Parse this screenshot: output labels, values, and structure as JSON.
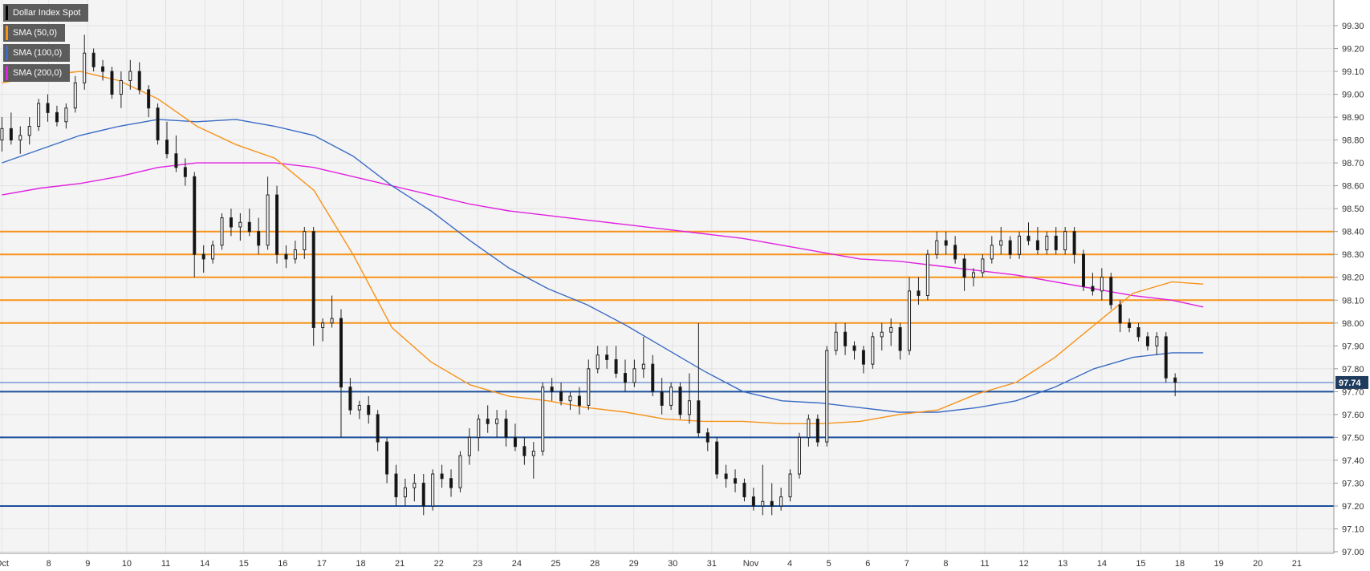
{
  "chart_data": {
    "type": "candlestick",
    "instrument": "Dollar Index Spot",
    "legend": [
      {
        "label": "Dollar Index Spot",
        "color": "#000000"
      },
      {
        "label": "SMA (50,0)",
        "color": "#f7931a"
      },
      {
        "label": "SMA (100,0)",
        "color": "#3a6bc4"
      },
      {
        "label": "SMA (200,0)",
        "color": "#e020e0"
      }
    ],
    "ylim": [
      97.0,
      99.4
    ],
    "y_ticks": [
      "99.30",
      "99.20",
      "99.10",
      "99.00",
      "98.90",
      "98.80",
      "98.70",
      "98.60",
      "98.50",
      "98.40",
      "98.30",
      "98.20",
      "98.10",
      "98.00",
      "97.90",
      "97.80",
      "97.70",
      "97.60",
      "97.50",
      "97.40",
      "97.30",
      "97.20",
      "97.10",
      "97.00"
    ],
    "x_ticks": [
      {
        "label": "Oct",
        "i": 0
      },
      {
        "label": "8",
        "i": 12
      },
      {
        "label": "9",
        "i": 22
      },
      {
        "label": "10",
        "i": 32
      },
      {
        "label": "11",
        "i": 42
      },
      {
        "label": "14",
        "i": 52
      },
      {
        "label": "15",
        "i": 62
      },
      {
        "label": "16",
        "i": 72
      },
      {
        "label": "17",
        "i": 82
      },
      {
        "label": "18",
        "i": 92
      },
      {
        "label": "21",
        "i": 102
      },
      {
        "label": "22",
        "i": 112
      },
      {
        "label": "23",
        "i": 122
      },
      {
        "label": "24",
        "i": 132
      },
      {
        "label": "25",
        "i": 142
      },
      {
        "label": "28",
        "i": 152
      },
      {
        "label": "29",
        "i": 162
      },
      {
        "label": "30",
        "i": 172
      },
      {
        "label": "31",
        "i": 182
      },
      {
        "label": "Nov",
        "i": 192
      },
      {
        "label": "4",
        "i": 202
      },
      {
        "label": "5",
        "i": 212
      },
      {
        "label": "6",
        "i": 222
      },
      {
        "label": "7",
        "i": 232
      },
      {
        "label": "8",
        "i": 242
      },
      {
        "label": "11",
        "i": 252
      },
      {
        "label": "12",
        "i": 262
      },
      {
        "label": "13",
        "i": 272
      },
      {
        "label": "14",
        "i": 282
      },
      {
        "label": "15",
        "i": 292
      },
      {
        "label": "18",
        "i": 302
      },
      {
        "label": "19",
        "i": 312
      },
      {
        "label": "20",
        "i": 322
      },
      {
        "label": "21",
        "i": 332
      }
    ],
    "n_slots": 342,
    "current_price": "97.74",
    "current_value": 97.74,
    "resistance_levels": [
      98.4,
      98.3,
      98.2,
      98.1,
      98.0
    ],
    "support_levels": [
      97.7,
      97.5,
      97.2
    ],
    "sma50": [
      [
        0,
        99.05
      ],
      [
        10,
        99.08
      ],
      [
        20,
        99.1
      ],
      [
        30,
        99.06
      ],
      [
        40,
        98.98
      ],
      [
        50,
        98.86
      ],
      [
        60,
        98.78
      ],
      [
        70,
        98.72
      ],
      [
        80,
        98.58
      ],
      [
        90,
        98.3
      ],
      [
        100,
        97.98
      ],
      [
        110,
        97.83
      ],
      [
        120,
        97.73
      ],
      [
        130,
        97.68
      ],
      [
        140,
        97.66
      ],
      [
        150,
        97.63
      ],
      [
        160,
        97.61
      ],
      [
        170,
        97.58
      ],
      [
        180,
        97.57
      ],
      [
        190,
        97.57
      ],
      [
        200,
        97.56
      ],
      [
        210,
        97.56
      ],
      [
        220,
        97.57
      ],
      [
        230,
        97.6
      ],
      [
        240,
        97.62
      ],
      [
        250,
        97.69
      ],
      [
        260,
        97.74
      ],
      [
        270,
        97.85
      ],
      [
        280,
        97.99
      ],
      [
        290,
        98.13
      ],
      [
        300,
        98.18
      ],
      [
        308,
        98.17
      ]
    ],
    "sma100": [
      [
        0,
        98.7
      ],
      [
        10,
        98.76
      ],
      [
        20,
        98.82
      ],
      [
        30,
        98.86
      ],
      [
        40,
        98.89
      ],
      [
        50,
        98.88
      ],
      [
        60,
        98.89
      ],
      [
        70,
        98.86
      ],
      [
        80,
        98.82
      ],
      [
        90,
        98.73
      ],
      [
        100,
        98.6
      ],
      [
        110,
        98.49
      ],
      [
        120,
        98.36
      ],
      [
        130,
        98.24
      ],
      [
        140,
        98.15
      ],
      [
        150,
        98.08
      ],
      [
        160,
        97.99
      ],
      [
        170,
        97.89
      ],
      [
        180,
        97.79
      ],
      [
        190,
        97.7
      ],
      [
        200,
        97.66
      ],
      [
        210,
        97.65
      ],
      [
        220,
        97.63
      ],
      [
        230,
        97.61
      ],
      [
        240,
        97.61
      ],
      [
        250,
        97.63
      ],
      [
        260,
        97.66
      ],
      [
        270,
        97.72
      ],
      [
        280,
        97.8
      ],
      [
        290,
        97.85
      ],
      [
        300,
        97.87
      ],
      [
        308,
        97.87
      ]
    ],
    "sma200": [
      [
        0,
        98.56
      ],
      [
        10,
        98.59
      ],
      [
        20,
        98.61
      ],
      [
        30,
        98.64
      ],
      [
        40,
        98.68
      ],
      [
        50,
        98.7
      ],
      [
        60,
        98.7
      ],
      [
        70,
        98.7
      ],
      [
        80,
        98.68
      ],
      [
        90,
        98.64
      ],
      [
        100,
        98.6
      ],
      [
        110,
        98.56
      ],
      [
        120,
        98.52
      ],
      [
        130,
        98.49
      ],
      [
        140,
        98.47
      ],
      [
        150,
        98.45
      ],
      [
        160,
        98.43
      ],
      [
        170,
        98.41
      ],
      [
        180,
        98.39
      ],
      [
        190,
        98.37
      ],
      [
        200,
        98.34
      ],
      [
        210,
        98.31
      ],
      [
        220,
        98.28
      ],
      [
        230,
        98.27
      ],
      [
        240,
        98.25
      ],
      [
        250,
        98.23
      ],
      [
        260,
        98.21
      ],
      [
        270,
        98.18
      ],
      [
        280,
        98.15
      ],
      [
        290,
        98.12
      ],
      [
        300,
        98.1
      ],
      [
        308,
        98.07
      ]
    ],
    "candles": [
      [
        98.8,
        98.9,
        98.75,
        98.85
      ],
      [
        98.85,
        98.92,
        98.78,
        98.8
      ],
      [
        98.8,
        98.86,
        98.74,
        98.82
      ],
      [
        98.82,
        98.9,
        98.78,
        98.86
      ],
      [
        98.86,
        98.98,
        98.84,
        98.96
      ],
      [
        98.96,
        99.0,
        98.88,
        98.92
      ],
      [
        98.92,
        98.95,
        98.86,
        98.88
      ],
      [
        98.88,
        98.96,
        98.85,
        98.94
      ],
      [
        98.94,
        99.08,
        98.92,
        99.05
      ],
      [
        99.05,
        99.26,
        99.02,
        99.18
      ],
      [
        99.18,
        99.2,
        99.1,
        99.12
      ],
      [
        99.12,
        99.15,
        99.06,
        99.1
      ],
      [
        99.1,
        99.12,
        98.98,
        99.0
      ],
      [
        99.0,
        99.1,
        98.94,
        99.06
      ],
      [
        99.06,
        99.15,
        99.02,
        99.1
      ],
      [
        99.1,
        99.14,
        99.0,
        99.02
      ],
      [
        99.02,
        99.04,
        98.9,
        98.94
      ],
      [
        98.94,
        98.96,
        98.78,
        98.8
      ],
      [
        98.8,
        98.88,
        98.72,
        98.74
      ],
      [
        98.74,
        98.82,
        98.66,
        98.68
      ],
      [
        98.68,
        98.72,
        98.6,
        98.64
      ],
      [
        98.64,
        98.66,
        98.2,
        98.3
      ],
      [
        98.3,
        98.34,
        98.22,
        98.28
      ],
      [
        98.28,
        98.36,
        98.26,
        98.34
      ],
      [
        98.34,
        98.48,
        98.32,
        98.46
      ],
      [
        98.46,
        98.5,
        98.38,
        98.42
      ],
      [
        98.42,
        98.48,
        98.36,
        98.44
      ],
      [
        98.44,
        98.5,
        98.38,
        98.4
      ],
      [
        98.4,
        98.46,
        98.3,
        98.34
      ],
      [
        98.34,
        98.64,
        98.32,
        98.56
      ],
      [
        98.56,
        98.6,
        98.26,
        98.3
      ],
      [
        98.3,
        98.34,
        98.24,
        98.28
      ],
      [
        98.28,
        98.36,
        98.26,
        98.32
      ],
      [
        98.32,
        98.42,
        98.28,
        98.4
      ],
      [
        98.4,
        98.42,
        97.9,
        97.98
      ],
      [
        97.98,
        98.02,
        97.92,
        98.0
      ],
      [
        98.0,
        98.12,
        97.98,
        98.02
      ],
      [
        98.02,
        98.06,
        97.5,
        97.72
      ],
      [
        97.72,
        97.76,
        97.6,
        97.62
      ],
      [
        97.62,
        97.66,
        97.58,
        97.64
      ],
      [
        97.64,
        97.68,
        97.56,
        97.6
      ],
      [
        97.6,
        97.62,
        97.44,
        97.48
      ],
      [
        97.48,
        97.5,
        97.3,
        97.34
      ],
      [
        97.34,
        97.38,
        97.2,
        97.24
      ],
      [
        97.24,
        97.32,
        97.2,
        97.28
      ],
      [
        97.28,
        97.34,
        97.22,
        97.3
      ],
      [
        97.3,
        97.34,
        97.16,
        97.2
      ],
      [
        97.2,
        97.36,
        97.18,
        97.34
      ],
      [
        97.34,
        97.38,
        97.28,
        97.32
      ],
      [
        97.32,
        97.36,
        97.24,
        97.28
      ],
      [
        97.28,
        97.44,
        97.26,
        97.42
      ],
      [
        97.42,
        97.54,
        97.38,
        97.5
      ],
      [
        97.5,
        97.6,
        97.44,
        97.58
      ],
      [
        97.58,
        97.64,
        97.52,
        97.56
      ],
      [
        97.56,
        97.62,
        97.5,
        97.58
      ],
      [
        97.58,
        97.62,
        97.46,
        97.5
      ],
      [
        97.5,
        97.56,
        97.44,
        97.46
      ],
      [
        97.46,
        97.5,
        97.38,
        97.42
      ],
      [
        97.42,
        97.48,
        97.32,
        97.44
      ],
      [
        97.44,
        97.74,
        97.42,
        97.72
      ],
      [
        97.72,
        97.76,
        97.66,
        97.7
      ],
      [
        97.7,
        97.74,
        97.64,
        97.66
      ],
      [
        97.66,
        97.7,
        97.62,
        97.68
      ],
      [
        97.68,
        97.72,
        97.6,
        97.64
      ],
      [
        97.64,
        97.84,
        97.62,
        97.8
      ],
      [
        97.8,
        97.9,
        97.78,
        97.86
      ],
      [
        97.86,
        97.9,
        97.8,
        97.84
      ],
      [
        97.84,
        97.9,
        97.76,
        97.78
      ],
      [
        97.78,
        97.84,
        97.7,
        97.74
      ],
      [
        97.74,
        97.84,
        97.72,
        97.8
      ],
      [
        97.8,
        97.94,
        97.76,
        97.82
      ],
      [
        97.82,
        97.86,
        97.68,
        97.7
      ],
      [
        97.7,
        97.76,
        97.6,
        97.64
      ],
      [
        97.64,
        97.74,
        97.62,
        97.72
      ],
      [
        97.72,
        97.74,
        97.58,
        97.6
      ],
      [
        97.6,
        97.78,
        97.56,
        97.66
      ],
      [
        97.66,
        98.0,
        97.5,
        97.52
      ],
      [
        97.52,
        97.54,
        97.44,
        97.48
      ],
      [
        97.48,
        97.5,
        97.32,
        97.34
      ],
      [
        97.34,
        97.38,
        97.28,
        97.32
      ],
      [
        97.32,
        97.36,
        97.26,
        97.3
      ],
      [
        97.3,
        97.32,
        97.22,
        97.24
      ],
      [
        97.24,
        97.28,
        97.18,
        97.2
      ],
      [
        97.2,
        97.38,
        97.16,
        97.22
      ],
      [
        97.22,
        97.3,
        97.16,
        97.2
      ],
      [
        97.2,
        97.28,
        97.18,
        97.24
      ],
      [
        97.24,
        97.36,
        97.22,
        97.34
      ],
      [
        97.34,
        97.52,
        97.32,
        97.5
      ],
      [
        97.5,
        97.6,
        97.46,
        97.58
      ],
      [
        97.58,
        97.6,
        97.46,
        97.48
      ],
      [
        97.48,
        97.9,
        97.46,
        97.88
      ],
      [
        97.88,
        98.0,
        97.86,
        97.96
      ],
      [
        97.96,
        98.0,
        97.86,
        97.9
      ],
      [
        97.9,
        97.92,
        97.84,
        97.88
      ],
      [
        97.88,
        97.9,
        97.78,
        97.82
      ],
      [
        97.82,
        97.96,
        97.8,
        97.94
      ],
      [
        97.94,
        98.0,
        97.88,
        97.96
      ],
      [
        97.96,
        98.02,
        97.9,
        97.98
      ],
      [
        97.98,
        98.0,
        97.84,
        97.88
      ],
      [
        97.88,
        98.2,
        97.86,
        98.14
      ],
      [
        98.14,
        98.2,
        98.08,
        98.12
      ],
      [
        98.12,
        98.32,
        98.1,
        98.3
      ],
      [
        98.3,
        98.4,
        98.28,
        98.36
      ],
      [
        98.36,
        98.4,
        98.3,
        98.34
      ],
      [
        98.34,
        98.38,
        98.26,
        98.28
      ],
      [
        98.28,
        98.3,
        98.14,
        98.2
      ],
      [
        98.2,
        98.24,
        98.16,
        98.22
      ],
      [
        98.22,
        98.3,
        98.2,
        98.28
      ],
      [
        98.28,
        98.38,
        98.26,
        98.34
      ],
      [
        98.34,
        98.42,
        98.3,
        98.36
      ],
      [
        98.36,
        98.38,
        98.28,
        98.3
      ],
      [
        98.3,
        98.4,
        98.28,
        98.38
      ],
      [
        98.38,
        98.44,
        98.34,
        98.36
      ],
      [
        98.36,
        98.42,
        98.3,
        98.32
      ],
      [
        98.32,
        98.4,
        98.3,
        98.38
      ],
      [
        98.38,
        98.42,
        98.3,
        98.32
      ],
      [
        98.32,
        98.42,
        98.3,
        98.4
      ],
      [
        98.4,
        98.42,
        98.26,
        98.3
      ],
      [
        98.3,
        98.32,
        98.14,
        98.16
      ],
      [
        98.16,
        98.22,
        98.12,
        98.14
      ],
      [
        98.14,
        98.24,
        98.1,
        98.2
      ],
      [
        98.2,
        98.22,
        98.06,
        98.08
      ],
      [
        98.08,
        98.1,
        97.96,
        98.0
      ],
      [
        98.0,
        98.02,
        97.96,
        97.98
      ],
      [
        97.98,
        98.0,
        97.92,
        97.94
      ],
      [
        97.94,
        97.96,
        97.88,
        97.9
      ],
      [
        97.9,
        97.96,
        97.86,
        97.94
      ],
      [
        97.94,
        97.96,
        97.74,
        97.76
      ],
      [
        97.76,
        97.78,
        97.68,
        97.74
      ]
    ]
  }
}
